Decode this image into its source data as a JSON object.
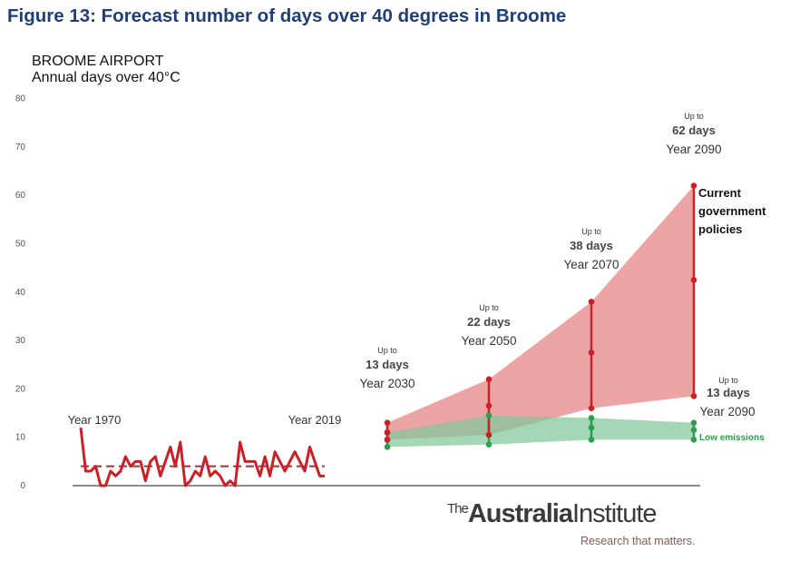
{
  "figure_title": "Figure 13: Forecast number of days over 40 degrees in Broome",
  "chart_title_line1": "BROOME AIRPORT",
  "chart_title_line2": "Annual days over 40°C",
  "logo": {
    "the": "The",
    "name": "Australia",
    "inst": "Institute",
    "tagline": "Research that matters."
  },
  "colors": {
    "historic": "#cc2027",
    "current_band": "#e88a8c",
    "low_band": "#7fc79a",
    "low_text": "#2e9e4e",
    "title": "#1f3f7a",
    "axis": "#8c8c8c"
  },
  "chart_data": {
    "type": "line",
    "ylim": [
      0,
      80
    ],
    "yticks": [
      0,
      10,
      20,
      30,
      40,
      50,
      60,
      70,
      80
    ],
    "grid": false,
    "historic": {
      "years": [
        1970,
        1971,
        1972,
        1973,
        1974,
        1975,
        1976,
        1977,
        1978,
        1979,
        1980,
        1981,
        1982,
        1983,
        1984,
        1985,
        1986,
        1987,
        1988,
        1989,
        1990,
        1991,
        1992,
        1993,
        1994,
        1995,
        1996,
        1997,
        1998,
        1999,
        2000,
        2001,
        2002,
        2003,
        2004,
        2005,
        2006,
        2007,
        2008,
        2009,
        2010,
        2011,
        2012,
        2013,
        2014,
        2015,
        2016,
        2017,
        2018,
        2019
      ],
      "values": [
        12,
        3,
        3,
        4,
        0,
        0,
        3,
        2,
        3,
        6,
        4,
        5,
        5,
        1,
        5,
        6,
        2,
        5,
        8,
        4,
        9,
        0,
        1,
        3,
        2,
        6,
        2,
        3,
        2,
        0,
        1,
        0,
        9,
        5,
        5,
        5,
        2,
        6,
        2,
        7,
        5,
        3,
        5,
        7,
        5,
        3,
        8,
        5,
        2,
        2
      ],
      "trend": 4,
      "start_label": "Year 1970",
      "end_label": "Year 2019"
    },
    "projections": [
      {
        "year": 2030,
        "current_max": 13,
        "current_mid": 11,
        "current_min": 9.5,
        "low_max": 11,
        "low_mid": 9.5,
        "low_min": 8,
        "prefix": "Up to",
        "value_label": "13 days",
        "year_label": "Year 2030"
      },
      {
        "year": 2050,
        "current_max": 22,
        "current_mid": 16.5,
        "current_min": 10.5,
        "low_max": 14.5,
        "low_mid": 10.5,
        "low_min": 8.5,
        "prefix": "Up to",
        "value_label": "22 days",
        "year_label": "Year 2050"
      },
      {
        "year": 2070,
        "current_max": 38,
        "current_mid": 27.5,
        "current_min": 16,
        "low_max": 14,
        "low_mid": 12,
        "low_min": 9.5,
        "prefix": "Up to",
        "value_label": "38 days",
        "year_label": "Year 2070"
      },
      {
        "year": 2090,
        "current_max": 62,
        "current_mid": 42.5,
        "current_min": 18.5,
        "low_max": 13,
        "low_mid": 11.5,
        "low_min": 9.5,
        "prefix": "Up to",
        "value_label": "62 days",
        "year_label": "Year 2090"
      }
    ],
    "low_2090_label": {
      "prefix": "Up to",
      "value_label": "13 days",
      "year_label": "Year 2090"
    },
    "series_labels": {
      "current": [
        "Current",
        "government",
        "policies"
      ],
      "low": "Low emissions"
    }
  }
}
